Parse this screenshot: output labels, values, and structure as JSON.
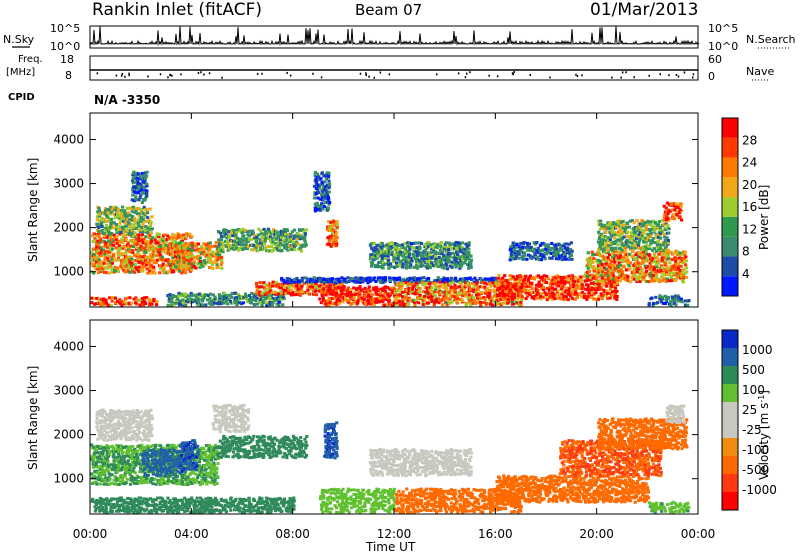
{
  "header": {
    "station": "Rankin Inlet (fitACF)",
    "beam": "Beam 07",
    "date": "01/Mar/2013"
  },
  "left_labels": {
    "nsky": "N.Sky",
    "freq": "Freq.",
    "freq_unit": "[MHz]",
    "cpid": "CPID",
    "cpid_value": "N/A -3350"
  },
  "right_labels": {
    "nsearch": "N.Search",
    "nave": "Nave"
  },
  "noise_panel": {
    "yticks_left": [
      "10^5",
      "10^0"
    ],
    "yticks_right": [
      "10^5",
      "10^0"
    ]
  },
  "freq_panel": {
    "yticks_left": [
      "18",
      "8"
    ],
    "yticks_right": [
      "60",
      "0"
    ]
  },
  "colors": {
    "power_scale": [
      "#0018ff",
      "#1e4aa8",
      "#3a8c6e",
      "#2f9a4e",
      "#9ccc2e",
      "#f0a818",
      "#ff7a00",
      "#ff3a00",
      "#ff0000"
    ],
    "velocity_scale": [
      "#ff0000",
      "#ff3a10",
      "#ff6a00",
      "#f08a10",
      "#c8c8c0",
      "#c8c8c0",
      "#60c030",
      "#2f8a5a",
      "#2060a8",
      "#0a28c8"
    ]
  },
  "chart_data": [
    {
      "type": "heatmap",
      "title": "",
      "xlabel": "",
      "ylabel": "Slant Range [km]",
      "xlim": [
        "00:00",
        "24:00"
      ],
      "ylim": [
        200,
        4600
      ],
      "yticks": [
        "1000",
        "2000",
        "3000",
        "4000"
      ],
      "colorbar": {
        "label": "Power [dB]",
        "ticks": [
          "4",
          "8",
          "12",
          "16",
          "20",
          "24",
          "28"
        ],
        "range": [
          0,
          32
        ]
      },
      "bands": [
        {
          "t0": 0.0,
          "t1": 2.6,
          "r0": 250,
          "r1": 450,
          "level": 28
        },
        {
          "t0": 0.0,
          "t1": 4.0,
          "r0": 1000,
          "r1": 1900,
          "level": 22
        },
        {
          "t0": 0.2,
          "t1": 2.4,
          "r0": 1900,
          "r1": 2500,
          "level": 14
        },
        {
          "t0": 1.6,
          "t1": 2.2,
          "r0": 2600,
          "r1": 3300,
          "level": 6
        },
        {
          "t0": 3.4,
          "t1": 5.2,
          "r0": 1100,
          "r1": 1700,
          "level": 20
        },
        {
          "t0": 5.0,
          "t1": 8.5,
          "r0": 1500,
          "r1": 2000,
          "level": 12
        },
        {
          "t0": 3.0,
          "t1": 7.6,
          "r0": 250,
          "r1": 550,
          "level": 10
        },
        {
          "t0": 6.5,
          "t1": 10.0,
          "r0": 500,
          "r1": 800,
          "level": 26
        },
        {
          "t0": 7.5,
          "t1": 16.0,
          "r0": 780,
          "r1": 900,
          "level": 4
        },
        {
          "t0": 9.0,
          "t1": 12.0,
          "r0": 250,
          "r1": 700,
          "level": 30
        },
        {
          "t0": 12.0,
          "t1": 17.0,
          "r0": 250,
          "r1": 800,
          "level": 24
        },
        {
          "t0": 16.0,
          "t1": 20.8,
          "r0": 400,
          "r1": 950,
          "level": 29
        },
        {
          "t0": 11.0,
          "t1": 15.0,
          "r0": 1100,
          "r1": 1700,
          "level": 10
        },
        {
          "t0": 16.5,
          "t1": 19.0,
          "r0": 1300,
          "r1": 1700,
          "level": 6
        },
        {
          "t0": 19.5,
          "t1": 23.5,
          "r0": 800,
          "r1": 1500,
          "level": 22
        },
        {
          "t0": 20.0,
          "t1": 22.8,
          "r0": 1500,
          "r1": 2200,
          "level": 14
        },
        {
          "t0": 22.6,
          "t1": 23.3,
          "r0": 2200,
          "r1": 2600,
          "level": 30
        },
        {
          "t0": 22.0,
          "t1": 23.6,
          "r0": 250,
          "r1": 500,
          "level": 8
        },
        {
          "t0": 9.3,
          "t1": 9.7,
          "r0": 1600,
          "r1": 2200,
          "level": 24
        },
        {
          "t0": 8.8,
          "t1": 9.4,
          "r0": 2400,
          "r1": 3300,
          "level": 6
        }
      ]
    },
    {
      "type": "heatmap",
      "title": "",
      "xlabel": "Time UT",
      "ylabel": "Slant Range [km]",
      "xlim": [
        "00:00",
        "24:00"
      ],
      "xticks": [
        "00:00",
        "04:00",
        "08:00",
        "12:00",
        "16:00",
        "20:00",
        "00:00"
      ],
      "ylim": [
        200,
        4600
      ],
      "yticks": [
        "1000",
        "2000",
        "3000",
        "4000"
      ],
      "colorbar": {
        "label": "Velocity [m s",
        "label_superscript": "-1",
        "label_end": "]",
        "ticks": [
          "-1000",
          "-500",
          "-100",
          "-25",
          "25",
          "100",
          "500",
          "1000"
        ]
      },
      "bands": [
        {
          "t0": 0.0,
          "t1": 5.0,
          "r0": 900,
          "r1": 1800,
          "level": 100
        },
        {
          "t0": 0.2,
          "t1": 2.4,
          "r0": 1900,
          "r1": 2600,
          "level": 0
        },
        {
          "t0": 2.0,
          "t1": 3.5,
          "r0": 1100,
          "r1": 1700,
          "level": 600
        },
        {
          "t0": 3.5,
          "t1": 4.2,
          "r0": 1200,
          "r1": 1900,
          "level": 900
        },
        {
          "t0": 4.8,
          "t1": 6.2,
          "r0": 2100,
          "r1": 2700,
          "level": 0
        },
        {
          "t0": 5.0,
          "t1": 8.5,
          "r0": 1500,
          "r1": 2000,
          "level": 250
        },
        {
          "t0": 0.0,
          "t1": 8.0,
          "r0": 250,
          "r1": 600,
          "level": 150
        },
        {
          "t0": 9.2,
          "t1": 9.7,
          "r0": 1500,
          "r1": 2300,
          "level": 900
        },
        {
          "t0": 9.0,
          "t1": 12.0,
          "r0": 250,
          "r1": 800,
          "level": 60
        },
        {
          "t0": 12.0,
          "t1": 17.0,
          "r0": 250,
          "r1": 800,
          "level": -150
        },
        {
          "t0": 11.0,
          "t1": 15.0,
          "r0": 1100,
          "r1": 1700,
          "level": 0
        },
        {
          "t0": 16.0,
          "t1": 22.0,
          "r0": 500,
          "r1": 1100,
          "level": -300
        },
        {
          "t0": 18.5,
          "t1": 22.5,
          "r0": 1100,
          "r1": 1900,
          "level": -500
        },
        {
          "t0": 20.0,
          "t1": 23.5,
          "r0": 1700,
          "r1": 2400,
          "level": -200
        },
        {
          "t0": 22.7,
          "t1": 23.4,
          "r0": 2300,
          "r1": 2700,
          "level": 0
        },
        {
          "t0": 22.0,
          "t1": 23.6,
          "r0": 250,
          "r1": 500,
          "level": 80
        }
      ]
    }
  ]
}
